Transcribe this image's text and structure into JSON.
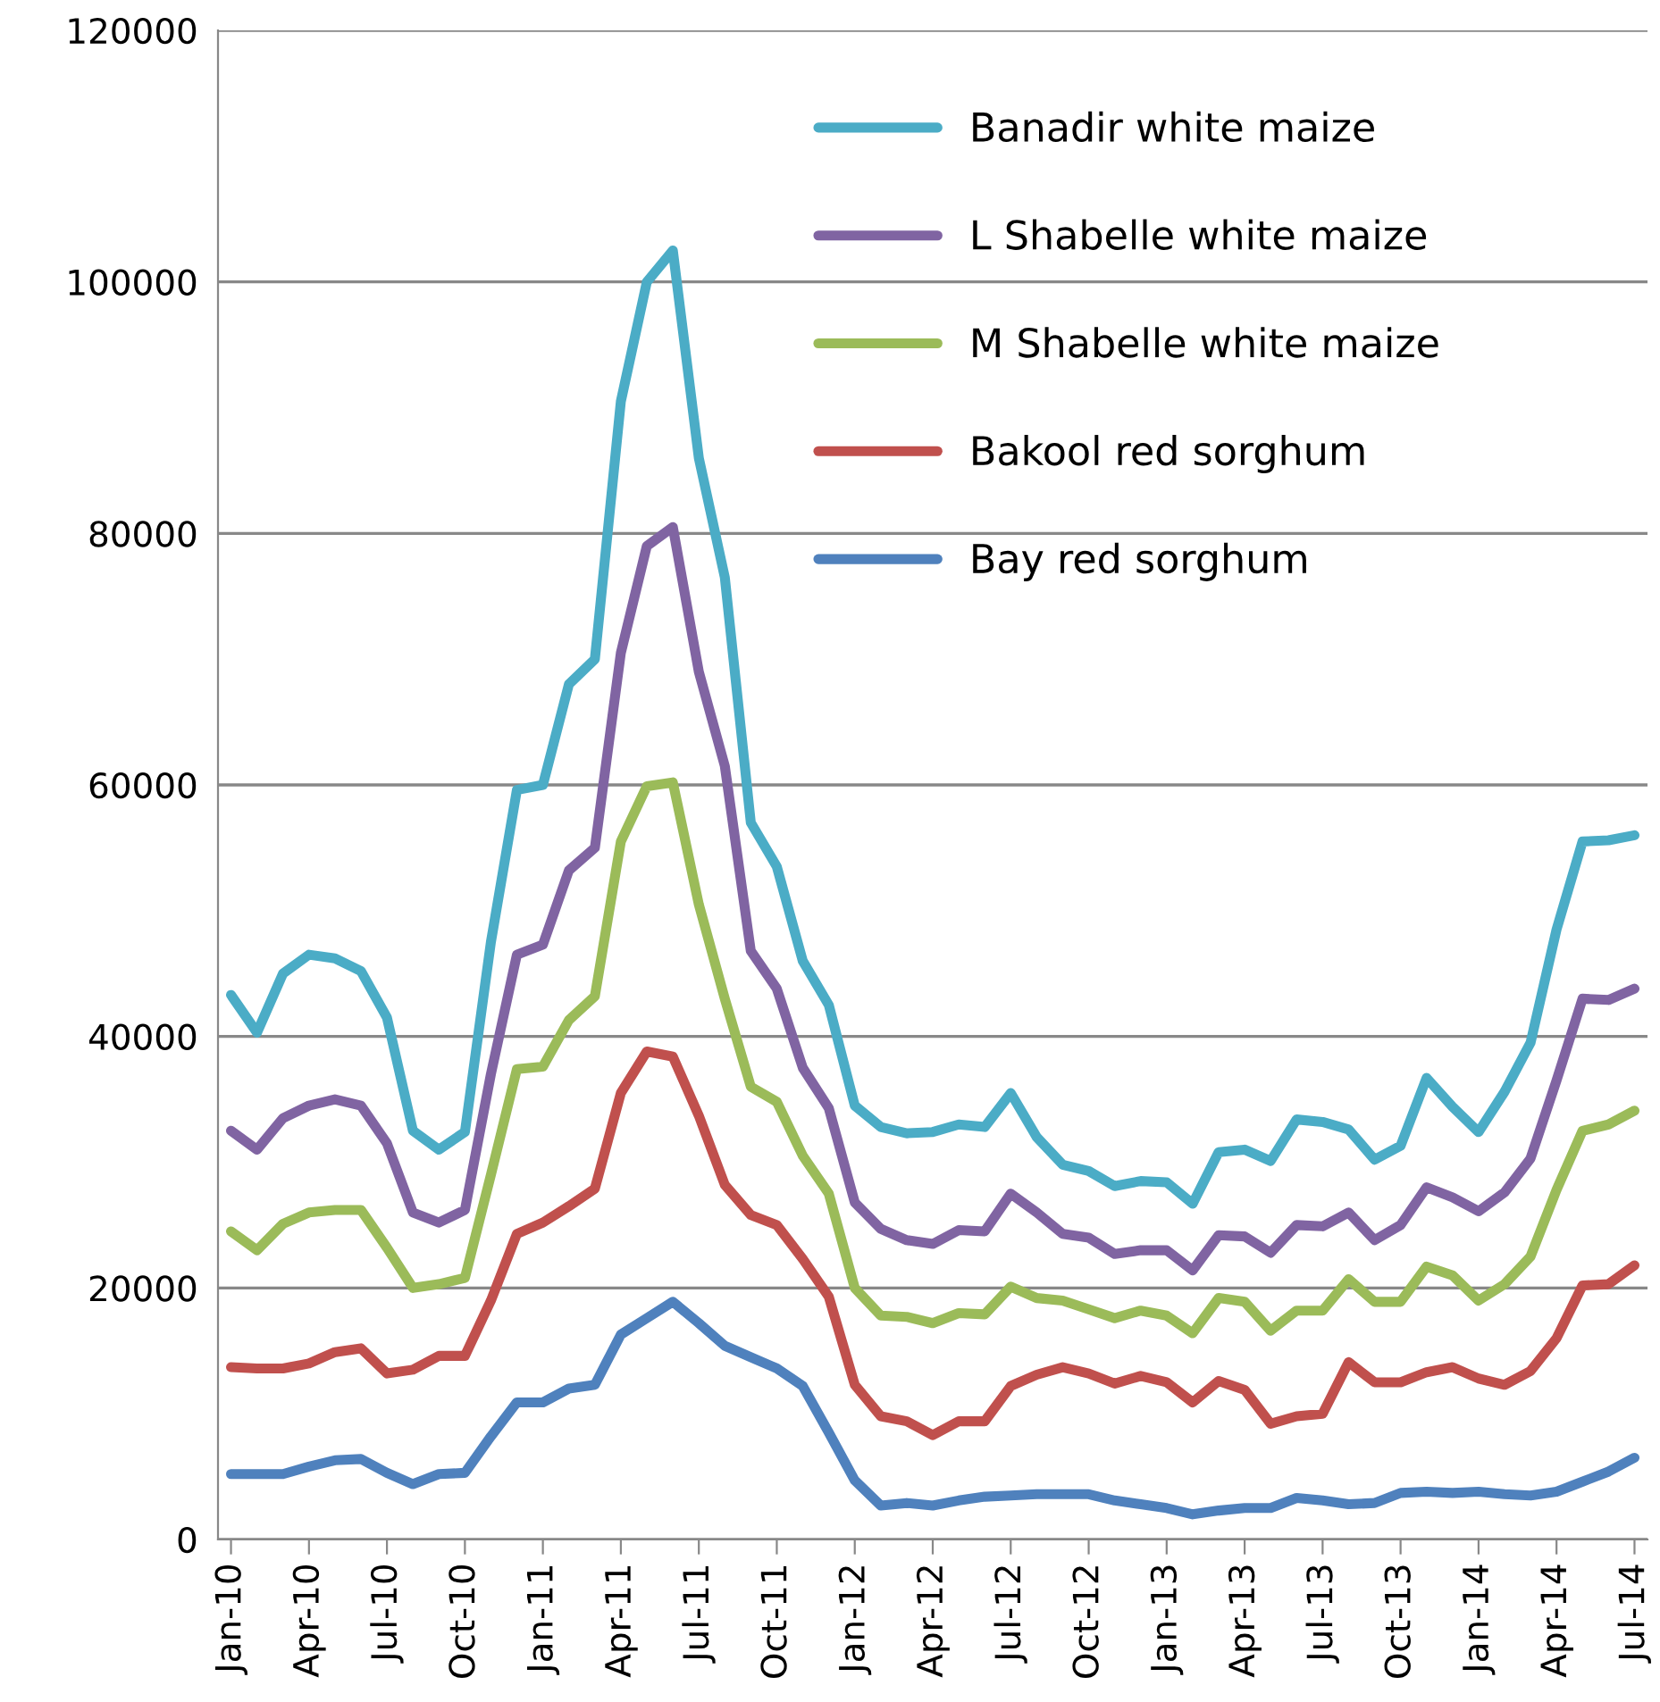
{
  "chart_data": {
    "type": "line",
    "categories": [
      "Jan-10",
      null,
      null,
      "Apr-10",
      null,
      null,
      "Jul-10",
      null,
      null,
      "Oct-10",
      null,
      null,
      "Jan-11",
      null,
      null,
      "Apr-11",
      null,
      null,
      "Jul-11",
      null,
      null,
      "Oct-11",
      null,
      null,
      "Jan-12",
      null,
      null,
      "Apr-12",
      null,
      null,
      "Jul-12",
      null,
      null,
      "Oct-12",
      null,
      null,
      "Jan-13",
      null,
      null,
      "Apr-13",
      null,
      null,
      "Jul-13",
      null,
      null,
      "Oct-13",
      null,
      null,
      "Jan-14",
      null,
      null,
      "Apr-14",
      null,
      null,
      "Jul-14"
    ],
    "series": [
      {
        "name": "Banadir white maize",
        "color": "#4bacc6",
        "values": [
          43300,
          40300,
          45000,
          46500,
          46200,
          45200,
          41500,
          32500,
          31000,
          32400,
          47500,
          59600,
          60000,
          68000,
          70000,
          90500,
          100000,
          102500,
          86000,
          76500,
          57000,
          53500,
          46000,
          42500,
          34500,
          32800,
          32300,
          32400,
          33000,
          32800,
          35500,
          32000,
          29800,
          29300,
          28100,
          28500,
          28400,
          26700,
          30800,
          31000,
          30100,
          33400,
          33200,
          32600,
          30200,
          31300,
          36700,
          34400,
          32400,
          35600,
          39500,
          48500,
          55500,
          55600,
          56000
        ]
      },
      {
        "name": "L Shabelle white maize",
        "color": "#8064a2",
        "values": [
          32500,
          31000,
          33500,
          34500,
          35000,
          34500,
          31500,
          26000,
          25200,
          26200,
          37000,
          46500,
          47300,
          53200,
          55000,
          70500,
          79000,
          80500,
          69000,
          61500,
          46800,
          43800,
          37500,
          34300,
          26800,
          24700,
          23800,
          23500,
          24600,
          24500,
          27500,
          26000,
          24300,
          24000,
          22700,
          23000,
          23000,
          21400,
          24200,
          24100,
          22800,
          25000,
          24900,
          26000,
          23800,
          25000,
          28000,
          27200,
          26100,
          27600,
          30300,
          36500,
          43000,
          42900,
          43800
        ]
      },
      {
        "name": "M Shabelle white maize",
        "color": "#9bbb59",
        "values": [
          24500,
          23000,
          25100,
          26000,
          26200,
          26200,
          23200,
          20000,
          20300,
          20800,
          29000,
          37400,
          37600,
          41300,
          43200,
          55500,
          59900,
          60200,
          50500,
          43000,
          36000,
          34800,
          30500,
          27500,
          20000,
          17800,
          17700,
          17200,
          18000,
          17900,
          20100,
          19200,
          19000,
          18300,
          17600,
          18200,
          17800,
          16400,
          19200,
          18900,
          16600,
          18200,
          18200,
          20700,
          18900,
          18900,
          21700,
          21000,
          19000,
          20300,
          22500,
          27800,
          32500,
          33000,
          34100
        ]
      },
      {
        "name": "Bakool red sorghum",
        "color": "#c0504d",
        "values": [
          13700,
          13600,
          13600,
          14000,
          14900,
          15200,
          13200,
          13500,
          14600,
          14600,
          19000,
          24300,
          25200,
          26500,
          27900,
          35500,
          38800,
          38400,
          33700,
          28200,
          25800,
          25000,
          22300,
          19300,
          12300,
          9800,
          9400,
          8300,
          9400,
          9400,
          12200,
          13100,
          13700,
          13200,
          12400,
          13000,
          12500,
          10900,
          12600,
          11900,
          9200,
          9800,
          10000,
          14100,
          12500,
          12500,
          13300,
          13700,
          12800,
          12300,
          13400,
          16000,
          20200,
          20300,
          21800
        ]
      },
      {
        "name": "Bay red sorghum",
        "color": "#4f81bd",
        "values": [
          5200,
          5200,
          5200,
          5800,
          6300,
          6400,
          5300,
          4400,
          5200,
          5300,
          8200,
          10900,
          10900,
          12000,
          12300,
          16300,
          17600,
          18900,
          17200,
          15400,
          14500,
          13600,
          12200,
          8500,
          4700,
          2700,
          2900,
          2700,
          3100,
          3400,
          3500,
          3600,
          3600,
          3600,
          3100,
          2800,
          2500,
          2000,
          2300,
          2500,
          2500,
          3300,
          3100,
          2800,
          2900,
          3700,
          3800,
          3700,
          3800,
          3600,
          3500,
          3800,
          4600,
          5400,
          6500
        ]
      }
    ],
    "ylim": [
      0,
      120000
    ],
    "yticks": [
      0,
      20000,
      40000,
      60000,
      80000,
      100000,
      120000
    ],
    "grid": "y",
    "legend": "top right",
    "marker": "none",
    "line_style": "solid"
  }
}
